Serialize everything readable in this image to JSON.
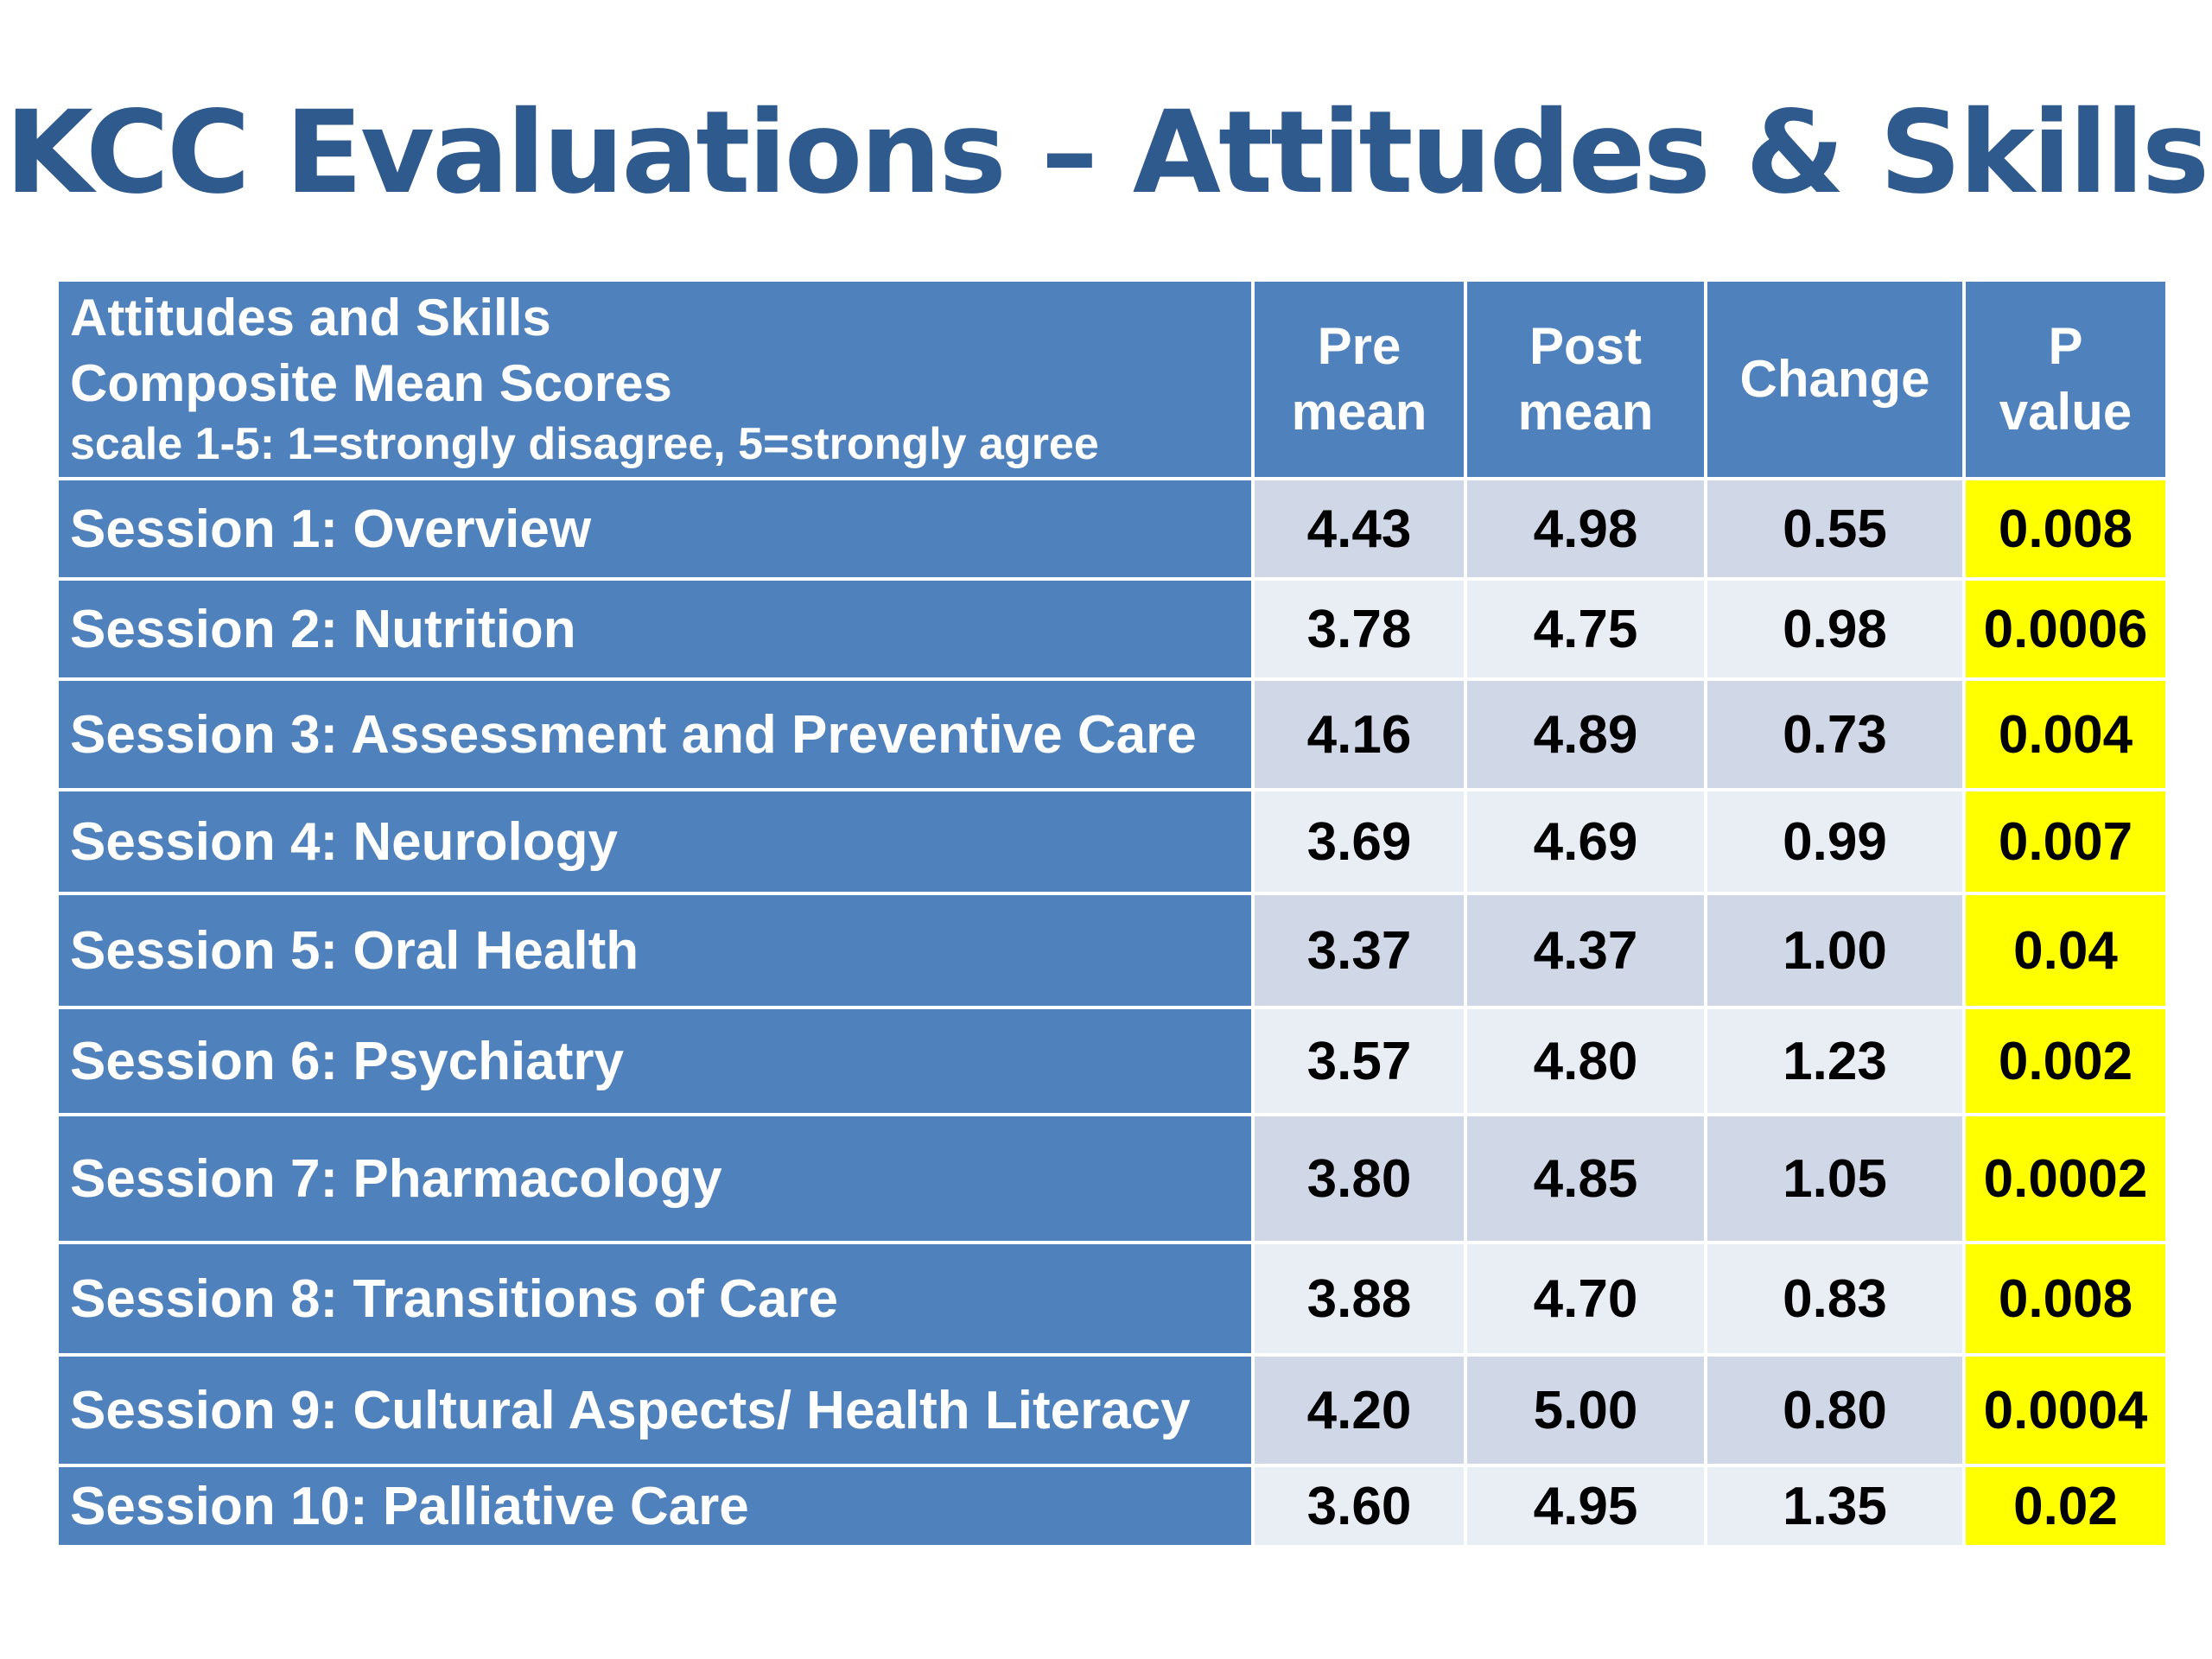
{
  "title": "KCC Evaluations – Attitudes & Skills",
  "colors": {
    "title": "#2f5a8e",
    "header_fill": "#4f81bd",
    "row_fill_dark": "#d0d8e8",
    "row_fill_light": "#e9edf4",
    "p_value_highlight": "#ffff00"
  },
  "table": {
    "header": {
      "label_line1": "Attitudes and Skills",
      "label_line2": "Composite Mean Scores",
      "label_line3": "scale 1-5: 1=strongly disagree, 5=strongly agree",
      "pre_line1": "Pre",
      "pre_line2": "mean",
      "post_line1": "Post",
      "post_line2": "mean",
      "change": "Change",
      "p_line1": "P",
      "p_line2": "value"
    },
    "rows": [
      {
        "session": "Session 1: Overview",
        "pre": "4.43",
        "post": "4.98",
        "change": "0.55",
        "p": "0.008"
      },
      {
        "session": "Session 2: Nutrition",
        "pre": "3.78",
        "post": "4.75",
        "change": "0.98",
        "p": "0.0006"
      },
      {
        "session": "Session 3: Assessment and Preventive Care",
        "pre": "4.16",
        "post": "4.89",
        "change": "0.73",
        "p": "0.004"
      },
      {
        "session": "Session 4: Neurology",
        "pre": "3.69",
        "post": "4.69",
        "change": "0.99",
        "p": "0.007"
      },
      {
        "session": "Session 5: Oral Health",
        "pre": "3.37",
        "post": "4.37",
        "change": "1.00",
        "p": "0.04"
      },
      {
        "session": "Session 6: Psychiatry",
        "pre": "3.57",
        "post": "4.80",
        "change": "1.23",
        "p": "0.002"
      },
      {
        "session": "Session 7: Pharmacology",
        "pre": "3.80",
        "post": "4.85",
        "change": "1.05",
        "p": "0.0002"
      },
      {
        "session": "Session 8: Transitions of Care",
        "pre": "3.88",
        "post": "4.70",
        "change": "0.83",
        "p": "0.008"
      },
      {
        "session": "Session 9: Cultural Aspects/ Health Literacy",
        "pre": "4.20",
        "post": "5.00",
        "change": "0.80",
        "p": "0.0004"
      },
      {
        "session": "Session 10: Palliative Care",
        "pre": "3.60",
        "post": "4.95",
        "change": "1.35",
        "p": "0.02"
      }
    ]
  }
}
